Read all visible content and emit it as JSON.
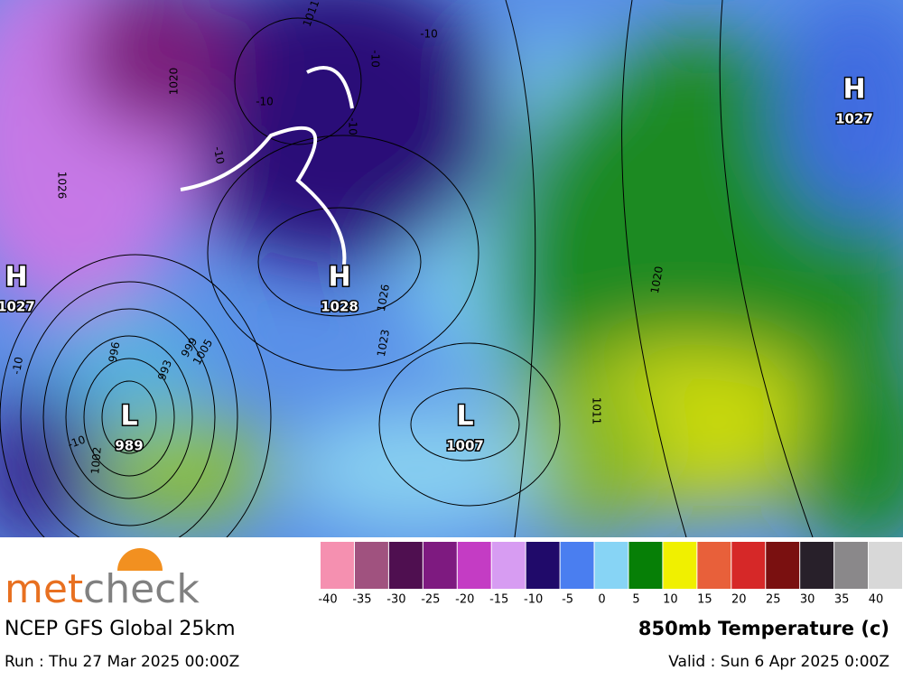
{
  "map": {
    "systems": [
      {
        "symbol": "H",
        "pressure": "1027"
      },
      {
        "symbol": "H",
        "pressure": "1028"
      },
      {
        "symbol": "L",
        "pressure": "989"
      },
      {
        "symbol": "L",
        "pressure": "1007"
      },
      {
        "symbol": "H",
        "pressure": "1027"
      }
    ],
    "contour_labels": [
      "1026",
      "1023",
      "1026",
      "1011",
      "996",
      "993",
      "999",
      "1005",
      "1020",
      "1011",
      "1002",
      "1020",
      "-10",
      "-10",
      "-10",
      "-10",
      "-10",
      "-10",
      "-10"
    ]
  },
  "legend": {
    "stops": [
      {
        "label": "-40",
        "color": "#f590b0"
      },
      {
        "label": "-35",
        "color": "#a0527f"
      },
      {
        "label": "-30",
        "color": "#4f0f50"
      },
      {
        "label": "-25",
        "color": "#7e1a80"
      },
      {
        "label": "-20",
        "color": "#c43cc4"
      },
      {
        "label": "-15",
        "color": "#d79cf2"
      },
      {
        "label": "-10",
        "color": "#200a6a"
      },
      {
        "label": "-5",
        "color": "#4a7ef0"
      },
      {
        "label": "0",
        "color": "#87d4f5"
      },
      {
        "label": "5",
        "color": "#067f06"
      },
      {
        "label": "10",
        "color": "#f0f000"
      },
      {
        "label": "15",
        "color": "#e8603a"
      },
      {
        "label": "20",
        "color": "#d62828"
      },
      {
        "label": "25",
        "color": "#7a1010"
      },
      {
        "label": "30",
        "color": "#28202a"
      },
      {
        "label": "35",
        "color": "#8a888a"
      },
      {
        "label": "40",
        "color": "#d8d8d8"
      }
    ]
  },
  "logo": {
    "part1": "met",
    "part2": "check"
  },
  "model": "NCEP GFS Global 25km",
  "product": "850mb Temperature (c)",
  "run": "Run : Thu 27 Mar 2025 00:00Z",
  "valid": "Valid : Sun 6 Apr 2025 0:00Z"
}
